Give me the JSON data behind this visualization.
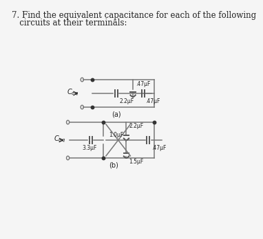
{
  "title_line1": "7. Find the equivalent capacitance for each of the following",
  "title_line2": "   circuits at their terminals:",
  "title_fontsize": 8.5,
  "bg_color": "#f5f5f5",
  "line_color": "#777777",
  "text_color": "#222222",
  "cap_color": "#555555",
  "dot_color": "#333333",
  "circ_color": "#777777",
  "a_label": "(a)",
  "b_label": "(b)",
  "ceq_label": "C_{eq}",
  "cap_a_mid": "2.2μF",
  "cap_a_top": ".47μF",
  "cap_a_right": ".47μF",
  "cap_b_series": "3.3μF",
  "cap_b_top": "2.2μF",
  "cap_b_mid": "1.0μF",
  "cap_b_bot": "1.5μF",
  "cap_b_right": ".47μF"
}
